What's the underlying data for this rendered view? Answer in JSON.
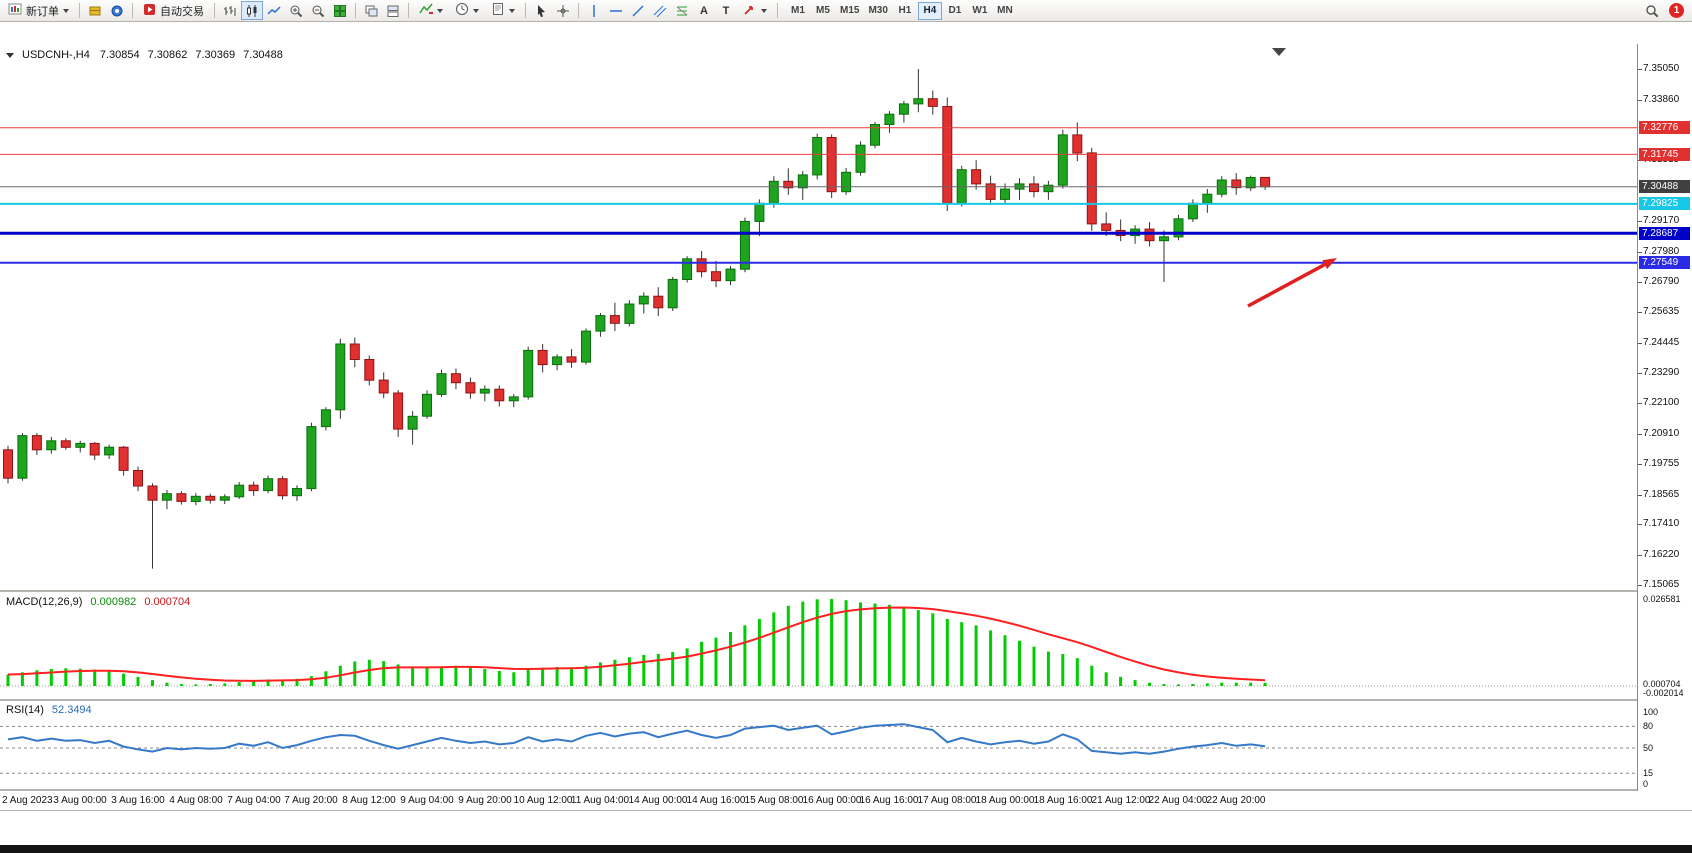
{
  "toolbar": {
    "new_order_label": "新订单",
    "auto_trading_label": "自动交易",
    "timeframes": [
      "M1",
      "M5",
      "M15",
      "M30",
      "H1",
      "H4",
      "D1",
      "W1",
      "MN"
    ],
    "active_timeframe": "H4",
    "notification_count": "1",
    "icons": {
      "text_glyph": "A",
      "label_glyph": "T"
    }
  },
  "chart": {
    "symbol_title": "USDCNH-,H4",
    "ohlc": [
      "7.30854",
      "7.30862",
      "7.30369",
      "7.30488"
    ],
    "macd_label": "MACD(12,26,9)",
    "macd_values": [
      "0.000982",
      "0.000704"
    ],
    "rsi_label": "RSI(14)",
    "rsi_value": "52.3494"
  },
  "colors": {
    "candle_up": "#1fa41f",
    "candle_up_border": "#0b6e0b",
    "candle_down": "#e03030",
    "candle_down_border": "#8f1515",
    "wick": "#333333",
    "macd_histogram": "#00cc00",
    "macd_signal": "#ff2020",
    "rsi_line": "#3579c8",
    "arrow": "#e01f1f",
    "current_price_line": "#666666"
  },
  "chart_data": {
    "type": "candlestick",
    "symbol": "USDCNH",
    "timeframe": "H4",
    "ylim": [
      7.1487,
      7.3602
    ],
    "bars": [
      [
        7.203,
        7.2045,
        7.19,
        7.192
      ],
      [
        7.192,
        7.2095,
        7.191,
        7.2085
      ],
      [
        7.2085,
        7.2095,
        7.201,
        7.203
      ],
      [
        7.203,
        7.208,
        7.2015,
        7.2065
      ],
      [
        7.2065,
        7.2075,
        7.203,
        7.204
      ],
      [
        7.204,
        7.2065,
        7.202,
        7.2055
      ],
      [
        7.2055,
        7.206,
        7.199,
        7.201
      ],
      [
        7.201,
        7.205,
        7.1995,
        7.204
      ],
      [
        7.204,
        7.2045,
        7.193,
        7.195
      ],
      [
        7.195,
        7.1965,
        7.187,
        7.189
      ],
      [
        7.189,
        7.19,
        7.157,
        7.1835
      ],
      [
        7.1835,
        7.1875,
        7.18,
        7.186
      ],
      [
        7.186,
        7.187,
        7.1818,
        7.183
      ],
      [
        7.183,
        7.1862,
        7.1815,
        7.185
      ],
      [
        7.185,
        7.186,
        7.1822,
        7.1835
      ],
      [
        7.1835,
        7.1858,
        7.182,
        7.1848
      ],
      [
        7.1848,
        7.1905,
        7.184,
        7.1893
      ],
      [
        7.1893,
        7.1907,
        7.1852,
        7.1872
      ],
      [
        7.1872,
        7.193,
        7.1862,
        7.1918
      ],
      [
        7.1918,
        7.1928,
        7.1838,
        7.1852
      ],
      [
        7.1852,
        7.1892,
        7.1832,
        7.188
      ],
      [
        7.188,
        7.2135,
        7.187,
        7.212
      ],
      [
        7.212,
        7.2195,
        7.2105,
        7.2185
      ],
      [
        7.2185,
        7.246,
        7.215,
        7.244
      ],
      [
        7.244,
        7.2465,
        7.235,
        7.238
      ],
      [
        7.238,
        7.2395,
        7.228,
        7.23
      ],
      [
        7.23,
        7.233,
        7.223,
        7.225
      ],
      [
        7.225,
        7.2262,
        7.208,
        7.211
      ],
      [
        7.211,
        7.218,
        7.205,
        7.216
      ],
      [
        7.216,
        7.226,
        7.215,
        7.2245
      ],
      [
        7.2245,
        7.234,
        7.2235,
        7.2325
      ],
      [
        7.2325,
        7.2345,
        7.2265,
        7.229
      ],
      [
        7.229,
        7.231,
        7.2228,
        7.225
      ],
      [
        7.225,
        7.228,
        7.2218,
        7.2265
      ],
      [
        7.2265,
        7.228,
        7.2198,
        7.222
      ],
      [
        7.222,
        7.2246,
        7.2195,
        7.2235
      ],
      [
        7.2235,
        7.243,
        7.2225,
        7.2415
      ],
      [
        7.2415,
        7.244,
        7.233,
        7.236
      ],
      [
        7.236,
        7.24,
        7.2338,
        7.239
      ],
      [
        7.239,
        7.242,
        7.2348,
        7.237
      ],
      [
        7.237,
        7.25,
        7.236,
        7.249
      ],
      [
        7.249,
        7.256,
        7.2468,
        7.255
      ],
      [
        7.255,
        7.26,
        7.249,
        7.252
      ],
      [
        7.252,
        7.261,
        7.2508,
        7.2595
      ],
      [
        7.2595,
        7.264,
        7.2558,
        7.2625
      ],
      [
        7.2625,
        7.266,
        7.2548,
        7.258
      ],
      [
        7.258,
        7.27,
        7.2568,
        7.269
      ],
      [
        7.269,
        7.278,
        7.2678,
        7.277
      ],
      [
        7.277,
        7.28,
        7.2698,
        7.272
      ],
      [
        7.272,
        7.2762,
        7.266,
        7.2685
      ],
      [
        7.2685,
        7.2742,
        7.2668,
        7.273
      ],
      [
        7.273,
        7.293,
        7.2718,
        7.2915
      ],
      [
        7.2915,
        7.3,
        7.2858,
        7.2985
      ],
      [
        7.2985,
        7.309,
        7.2968,
        7.307
      ],
      [
        7.307,
        7.312,
        7.3018,
        7.3045
      ],
      [
        7.3045,
        7.311,
        7.2998,
        7.3095
      ],
      [
        7.3095,
        7.3255,
        7.3078,
        7.324
      ],
      [
        7.324,
        7.3252,
        7.3005,
        7.303
      ],
      [
        7.303,
        7.3122,
        7.3018,
        7.3105
      ],
      [
        7.3105,
        7.3225,
        7.3092,
        7.321
      ],
      [
        7.321,
        7.33,
        7.3198,
        7.329
      ],
      [
        7.329,
        7.3342,
        7.3258,
        7.333
      ],
      [
        7.333,
        7.3382,
        7.3298,
        7.337
      ],
      [
        7.337,
        7.3505,
        7.3338,
        7.339
      ],
      [
        7.339,
        7.3422,
        7.3328,
        7.336
      ],
      [
        7.336,
        7.3395,
        7.2955,
        7.2985
      ],
      [
        7.2985,
        7.313,
        7.2972,
        7.3115
      ],
      [
        7.3115,
        7.3152,
        7.3038,
        7.306
      ],
      [
        7.306,
        7.3092,
        7.2978,
        7.3
      ],
      [
        7.3,
        7.3062,
        7.298,
        7.304
      ],
      [
        7.304,
        7.3082,
        7.2998,
        7.306
      ],
      [
        7.306,
        7.309,
        7.3008,
        7.303
      ],
      [
        7.303,
        7.3072,
        7.2998,
        7.3055
      ],
      [
        7.3055,
        7.327,
        7.3042,
        7.325
      ],
      [
        7.325,
        7.3298,
        7.3148,
        7.318
      ],
      [
        7.318,
        7.32,
        7.2878,
        7.2905
      ],
      [
        7.2905,
        7.295,
        7.2858,
        7.288
      ],
      [
        7.288,
        7.2922,
        7.2838,
        7.286
      ],
      [
        7.286,
        7.29,
        7.2828,
        7.2885
      ],
      [
        7.2885,
        7.2912,
        7.2818,
        7.284
      ],
      [
        7.284,
        7.288,
        7.268,
        7.2855
      ],
      [
        7.2855,
        7.294,
        7.2842,
        7.2925
      ],
      [
        7.2925,
        7.3,
        7.2912,
        7.2985
      ],
      [
        7.2985,
        7.304,
        7.2948,
        7.302
      ],
      [
        7.302,
        7.309,
        7.3008,
        7.3075
      ],
      [
        7.3075,
        7.3102,
        7.3018,
        7.3045
      ],
      [
        7.3045,
        7.3092,
        7.3032,
        7.3085
      ],
      [
        7.30854,
        7.30862,
        7.30369,
        7.30488
      ]
    ],
    "time_labels": [
      "2 Aug 2023",
      "3 Aug 00:00",
      "3 Aug 16:00",
      "4 Aug 08:00",
      "7 Aug 04:00",
      "7 Aug 20:00",
      "8 Aug 12:00",
      "9 Aug 04:00",
      "9 Aug 20:00",
      "10 Aug 12:00",
      "11 Aug 04:00",
      "14 Aug 00:00",
      "14 Aug 16:00",
      "15 Aug 08:00",
      "16 Aug 00:00",
      "16 Aug 16:00",
      "17 Aug 08:00",
      "18 Aug 00:00",
      "18 Aug 16:00",
      "21 Aug 12:00",
      "22 Aug 04:00",
      "22 Aug 20:00"
    ],
    "label_start_index": 1,
    "label_every": 4,
    "price_axis": {
      "ticks": [
        "7.35050",
        "7.33860",
        "7.31515",
        "7.29170",
        "7.27980",
        "7.26790",
        "7.25635",
        "7.24445",
        "7.23290",
        "7.22100",
        "7.20910",
        "7.19755",
        "7.18565",
        "7.17410",
        "7.16220",
        "7.15065"
      ],
      "badges": [
        {
          "label": "7.32776",
          "price": 7.32776,
          "bg": "#e03030"
        },
        {
          "label": "7.31745",
          "price": 7.31745,
          "bg": "#e03030"
        },
        {
          "label": "7.30488",
          "price": 7.30488,
          "bg": "#404040"
        },
        {
          "label": "7.29825",
          "price": 7.29825,
          "bg": "#18c7e8"
        },
        {
          "label": "7.28687",
          "price": 7.28687,
          "bg": "#0000c8"
        },
        {
          "label": "7.27549",
          "price": 7.27549,
          "bg": "#2b2be6"
        }
      ]
    },
    "hlines": [
      {
        "price": 7.32776,
        "color": "#f03a3a",
        "w": 1
      },
      {
        "price": 7.31745,
        "color": "#f03a3a",
        "w": 1
      },
      {
        "price": 7.30488,
        "color": "#666666",
        "w": 1
      },
      {
        "price": 7.29825,
        "color": "#18c7e8",
        "w": 2
      },
      {
        "price": 7.28687,
        "color": "#0000c8",
        "w": 3
      },
      {
        "price": 7.27549,
        "color": "#2b2be6",
        "w": 2
      }
    ],
    "macd": {
      "params": "12,26,9",
      "histogram": [
        0.0035,
        0.0042,
        0.0048,
        0.0052,
        0.0054,
        0.0053,
        0.005,
        0.0046,
        0.0038,
        0.0028,
        0.0018,
        0.001,
        0.0006,
        0.0005,
        0.0006,
        0.0008,
        0.0012,
        0.0015,
        0.002,
        0.002,
        0.0022,
        0.003,
        0.0045,
        0.0062,
        0.0075,
        0.008,
        0.0076,
        0.0066,
        0.0058,
        0.0056,
        0.006,
        0.0062,
        0.0058,
        0.0052,
        0.0046,
        0.0042,
        0.005,
        0.0056,
        0.0058,
        0.0057,
        0.0062,
        0.0072,
        0.008,
        0.0088,
        0.0095,
        0.0098,
        0.0104,
        0.0115,
        0.0135,
        0.0148,
        0.0165,
        0.0185,
        0.0205,
        0.0225,
        0.0245,
        0.0258,
        0.0265,
        0.0266,
        0.0262,
        0.0255,
        0.0252,
        0.0248,
        0.024,
        0.0232,
        0.0222,
        0.0205,
        0.0195,
        0.0185,
        0.017,
        0.0155,
        0.0138,
        0.012,
        0.0105,
        0.0098,
        0.0085,
        0.0062,
        0.0042,
        0.0028,
        0.0018,
        0.001,
        0.0006,
        0.0005,
        0.0006,
        0.0008,
        0.001,
        0.001,
        0.001,
        0.00098
      ],
      "signal_period": 9,
      "axis_top_label": "0.026581",
      "axis_near_zero_labels": [
        "0.000982",
        "0.000704",
        "-0.002014"
      ]
    },
    "rsi": {
      "period": 14,
      "values": [
        62,
        65,
        60,
        63,
        60,
        61,
        57,
        60,
        52,
        48,
        45,
        50,
        48,
        50,
        49,
        50,
        56,
        53,
        58,
        50,
        54,
        60,
        65,
        68,
        67,
        60,
        54,
        49,
        54,
        59,
        64,
        60,
        57,
        59,
        55,
        57,
        65,
        59,
        62,
        59,
        67,
        71,
        66,
        70,
        72,
        65,
        70,
        74,
        68,
        64,
        68,
        77,
        79,
        81,
        75,
        78,
        81,
        69,
        73,
        78,
        81,
        82,
        83,
        79,
        75,
        58,
        64,
        59,
        55,
        58,
        60,
        56,
        59,
        69,
        62,
        46,
        44,
        42,
        44,
        42,
        45,
        49,
        52,
        54,
        57,
        53,
        55,
        52.3
      ],
      "levels": [
        80,
        50,
        15
      ],
      "axis_labels": [
        "100",
        "80",
        "50",
        "15",
        "0"
      ]
    },
    "annotation_arrow": {
      "from": [
        1248,
        284
      ],
      "to": [
        1337,
        236
      ]
    }
  }
}
